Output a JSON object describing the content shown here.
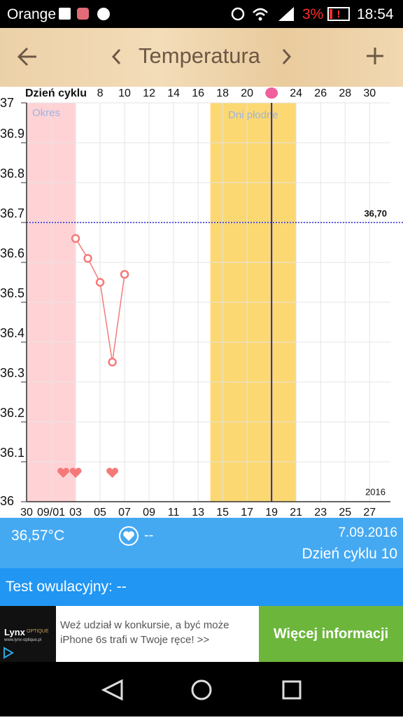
{
  "status_bar": {
    "carrier": "Orange",
    "battery": "3%",
    "time": "18:54"
  },
  "header": {
    "title": "Temperatura"
  },
  "chart_data": {
    "type": "line",
    "x_label": "Dzień cyklu",
    "x": [
      6,
      7,
      8,
      9,
      10
    ],
    "values": [
      36.66,
      36.61,
      36.55,
      36.35,
      36.57
    ],
    "color": "#f47a7a",
    "xlim": [
      2,
      31.7
    ],
    "ylim": [
      36,
      37
    ],
    "yticks": [
      36,
      36.1,
      36.2,
      36.3,
      36.4,
      36.5,
      36.6,
      36.7,
      36.8,
      36.9,
      37
    ],
    "xticks_top": [
      8,
      10,
      12,
      14,
      16,
      18,
      20,
      24,
      26,
      28,
      30
    ],
    "xticks": [
      {
        "value": 2,
        "label": "30"
      },
      {
        "value": 4,
        "label": "09/01"
      },
      {
        "value": 6,
        "label": "03"
      },
      {
        "value": 8,
        "label": "05"
      },
      {
        "value": 10,
        "label": "07"
      },
      {
        "value": 12,
        "label": "09"
      },
      {
        "value": 14,
        "label": "11"
      },
      {
        "value": 16,
        "label": "13"
      },
      {
        "value": 18,
        "label": "15"
      },
      {
        "value": 20,
        "label": "17"
      },
      {
        "value": 22,
        "label": "19"
      },
      {
        "value": 24,
        "label": "21"
      },
      {
        "value": 26,
        "label": "23"
      },
      {
        "value": 28,
        "label": "25"
      },
      {
        "value": 30,
        "label": "27"
      }
    ],
    "grid": true,
    "cover_line": {
      "value": 36.7,
      "label": "36,70",
      "color": "#2a2ad0"
    },
    "period": {
      "label": "Okres",
      "range": [
        2,
        6
      ],
      "color": "#ffd3d6"
    },
    "fertile": {
      "label": "Dni płodne",
      "range": [
        17,
        24
      ],
      "color": "#fbd872"
    },
    "ovulation_day": 22,
    "intercourse_days": [
      5,
      6,
      9
    ],
    "year": "2016"
  },
  "summary": {
    "temperature": "36,57°C",
    "intercourse": "--",
    "date": "7.09.2016",
    "cycle_day": "Dzień cyklu 10",
    "ovulation_test": "Test owulacyjny: --"
  },
  "ad": {
    "brand": "Lynx",
    "brand_sub": "OPTIQUE",
    "site": "www.lynx-optique.pl",
    "text": [
      "Weź udział w konkursie, a być może",
      "iPhone 6s trafi w Twoje ręce! >>"
    ],
    "button": "Więcej informacji"
  }
}
